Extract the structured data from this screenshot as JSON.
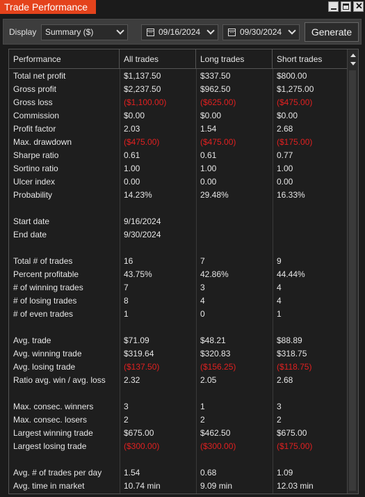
{
  "window": {
    "title": "Trade Performance"
  },
  "toolbar": {
    "display_label": "Display",
    "display_value": "Summary ($)",
    "start_date": "09/16/2024",
    "end_date": "09/30/2024",
    "generate_label": "Generate"
  },
  "colors": {
    "title_bg": "#e4431c",
    "negative": "#e02020"
  },
  "table": {
    "headers": [
      "Performance",
      "All trades",
      "Long trades",
      "Short trades"
    ],
    "rows": [
      [
        "Total net profit",
        "$1,137.50",
        "$337.50",
        "$800.00"
      ],
      [
        "Gross profit",
        "$2,237.50",
        "$962.50",
        "$1,275.00"
      ],
      [
        "Gross loss",
        "($1,100.00)",
        "($625.00)",
        "($475.00)"
      ],
      [
        "Commission",
        "$0.00",
        "$0.00",
        "$0.00"
      ],
      [
        "Profit factor",
        "2.03",
        "1.54",
        "2.68"
      ],
      [
        "Max. drawdown",
        "($475.00)",
        "($475.00)",
        "($175.00)"
      ],
      [
        "Sharpe ratio",
        "0.61",
        "0.61",
        "0.77"
      ],
      [
        "Sortino ratio",
        "1.00",
        "1.00",
        "1.00"
      ],
      [
        "Ulcer index",
        "0.00",
        "0.00",
        "0.00"
      ],
      [
        "Probability",
        "14.23%",
        "29.48%",
        "16.33%"
      ],
      [
        "",
        "",
        "",
        ""
      ],
      [
        "Start date",
        "9/16/2024",
        "",
        ""
      ],
      [
        "End date",
        "9/30/2024",
        "",
        ""
      ],
      [
        "",
        "",
        "",
        ""
      ],
      [
        "Total # of trades",
        "16",
        "7",
        "9"
      ],
      [
        "Percent profitable",
        "43.75%",
        "42.86%",
        "44.44%"
      ],
      [
        "# of winning trades",
        "7",
        "3",
        "4"
      ],
      [
        "# of losing trades",
        "8",
        "4",
        "4"
      ],
      [
        "# of even trades",
        "1",
        "0",
        "1"
      ],
      [
        "",
        "",
        "",
        ""
      ],
      [
        "Avg. trade",
        "$71.09",
        "$48.21",
        "$88.89"
      ],
      [
        "Avg. winning trade",
        "$319.64",
        "$320.83",
        "$318.75"
      ],
      [
        "Avg. losing trade",
        "($137.50)",
        "($156.25)",
        "($118.75)"
      ],
      [
        "Ratio avg. win / avg. loss",
        "2.32",
        "2.05",
        "2.68"
      ],
      [
        "",
        "",
        "",
        ""
      ],
      [
        "Max. consec. winners",
        "3",
        "1",
        "3"
      ],
      [
        "Max. consec. losers",
        "2",
        "2",
        "2"
      ],
      [
        "Largest winning trade",
        "$675.00",
        "$462.50",
        "$675.00"
      ],
      [
        "Largest losing trade",
        "($300.00)",
        "($300.00)",
        "($175.00)"
      ],
      [
        "",
        "",
        "",
        ""
      ],
      [
        "Avg. # of trades per day",
        "1.54",
        "0.68",
        "1.09"
      ],
      [
        "Avg. time in market",
        "10.74 min",
        "9.09 min",
        "12.03 min"
      ]
    ]
  }
}
